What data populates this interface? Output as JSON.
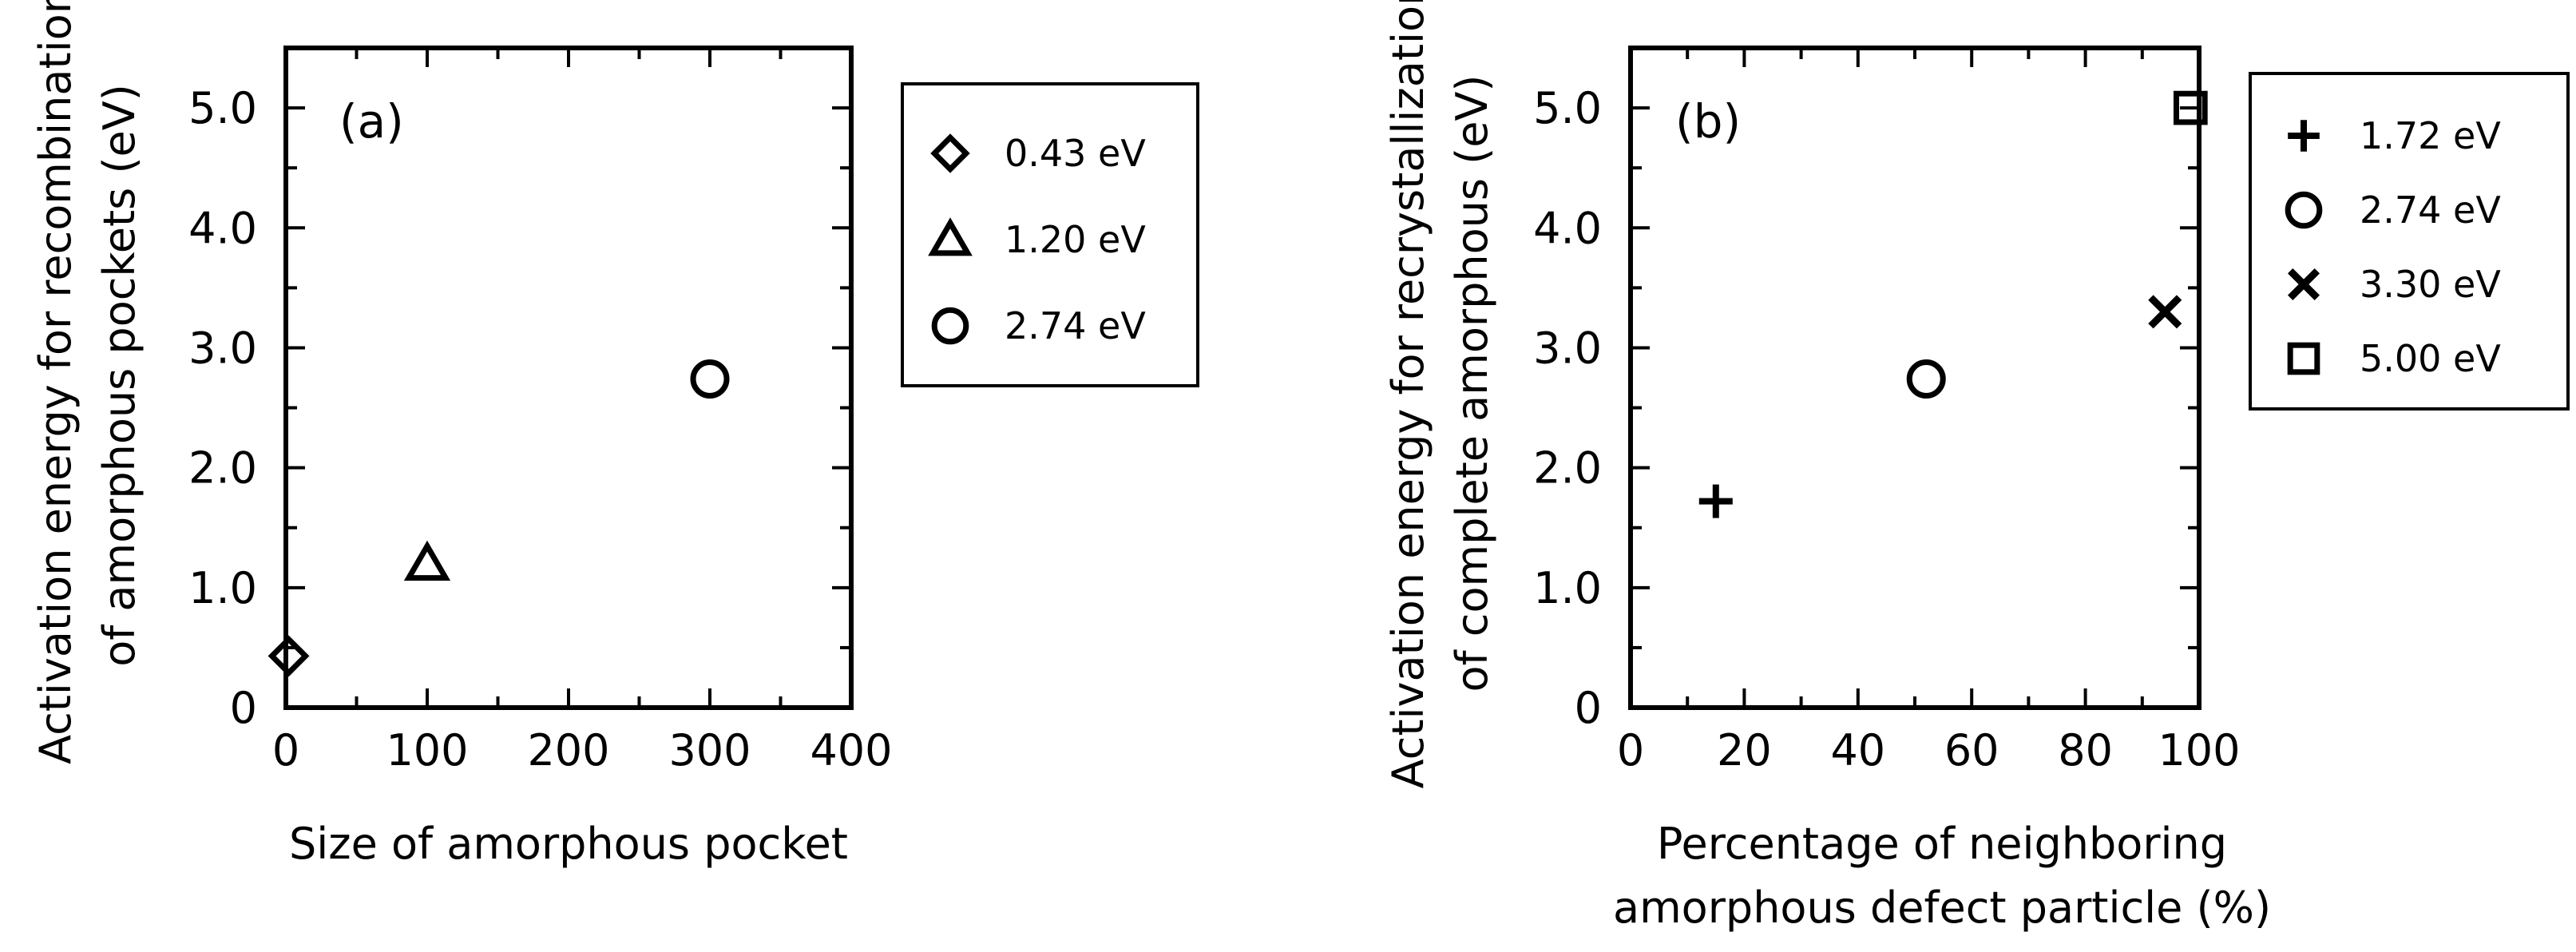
{
  "chart_data": [
    {
      "type": "scatter",
      "panel_label": "(a)",
      "ylabel": [
        "Activation energy for recombination",
        "of amorphous pockets (eV)"
      ],
      "xlabel": [
        "Size of amorphous pocket"
      ],
      "xlim": [
        0,
        400
      ],
      "ylim": [
        0,
        5.5
      ],
      "x_ticks": [
        0,
        100,
        200,
        300,
        400
      ],
      "x_tick_labels": [
        "0",
        "100",
        "200",
        "300",
        "400"
      ],
      "y_ticks": [
        0,
        1,
        2,
        3,
        4,
        5
      ],
      "y_tick_labels": [
        "0",
        "1.0",
        "2.0",
        "3.0",
        "4.0",
        "5.0"
      ],
      "grid": false,
      "legend_position": "outside-right",
      "series": [
        {
          "name": "0.43 eV",
          "marker": "diamond",
          "points": [
            [
              2,
              0.43
            ]
          ]
        },
        {
          "name": "1.20 eV",
          "marker": "triangle",
          "points": [
            [
              100,
              1.2
            ]
          ]
        },
        {
          "name": "2.74 eV",
          "marker": "circle",
          "points": [
            [
              300,
              2.74
            ]
          ]
        }
      ]
    },
    {
      "type": "scatter",
      "panel_label": "(b)",
      "ylabel": [
        "Activation energy for recrystallization",
        "of complete amorphous (eV)"
      ],
      "xlabel": [
        "Percentage of neighboring",
        "amorphous defect particle (%)"
      ],
      "xlim": [
        0,
        100
      ],
      "ylim": [
        0,
        5.5
      ],
      "x_ticks": [
        0,
        20,
        40,
        60,
        80,
        100
      ],
      "x_tick_labels": [
        "0",
        "20",
        "40",
        "60",
        "80",
        "100"
      ],
      "y_ticks": [
        0,
        1,
        2,
        3,
        4,
        5
      ],
      "y_tick_labels": [
        "0",
        "1.0",
        "2.0",
        "3.0",
        "4.0",
        "5.0"
      ],
      "grid": false,
      "legend_position": "outside-right",
      "series": [
        {
          "name": "1.72 eV",
          "marker": "plus",
          "points": [
            [
              15,
              1.72
            ]
          ]
        },
        {
          "name": "2.74 eV",
          "marker": "circle",
          "points": [
            [
              52,
              2.74
            ]
          ]
        },
        {
          "name": "3.30 eV",
          "marker": "cross",
          "points": [
            [
              94,
              3.3
            ]
          ]
        },
        {
          "name": "5.00 eV",
          "marker": "square",
          "points": [
            [
              98.5,
              5.0
            ]
          ]
        }
      ]
    }
  ]
}
